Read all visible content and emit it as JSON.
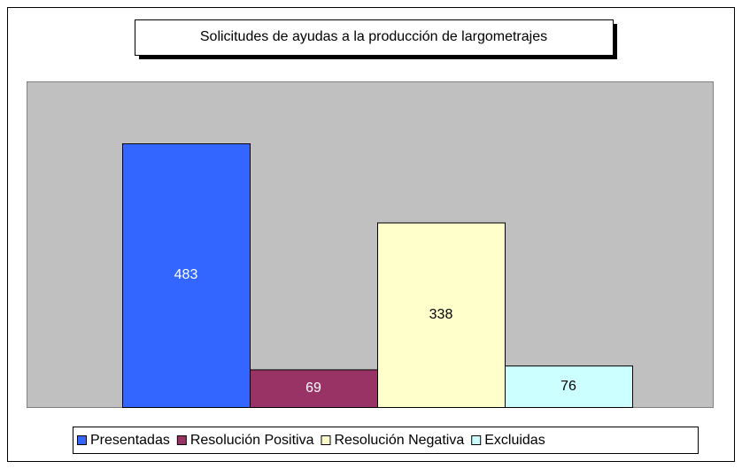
{
  "chart_data": {
    "type": "bar",
    "title": "Solicitudes de ayudas a la producción de largometrajes",
    "series": [
      {
        "name": "Presentadas",
        "color": "#3366ff",
        "values": [
          483
        ]
      },
      {
        "name": "Resolución Positiva",
        "color": "#993366",
        "values": [
          69
        ]
      },
      {
        "name": "Resolución Negativa",
        "color": "#ffffcc",
        "values": [
          338
        ]
      },
      {
        "name": "Excluidas",
        "color": "#ccffff",
        "values": [
          76
        ]
      }
    ],
    "legend": "bottom"
  }
}
